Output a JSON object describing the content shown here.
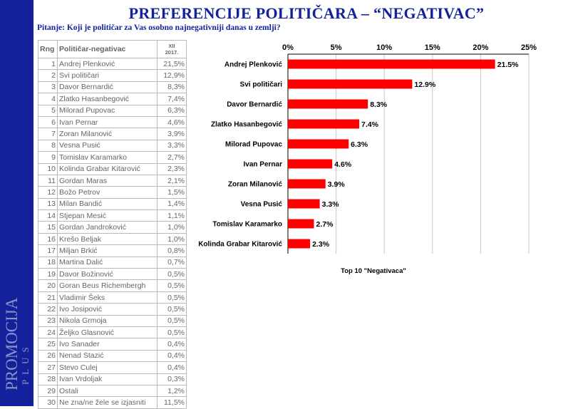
{
  "title": "PREFERENCIJE POLITIČARA – “NEGATIVAC”",
  "question": "Pitanje: Koji je političar za Vas osobno najnegativniji danas u zemlji?",
  "brand": {
    "line1": "PROMOCIJA",
    "line2": "PLUS"
  },
  "colors": {
    "sidebar": "#13229a",
    "bar": "#ff0000",
    "title": "#13229a"
  },
  "table": {
    "headers": {
      "rank": "Rng",
      "name": "Političar-negativac",
      "period_line1": "XII",
      "period_line2": "2017."
    },
    "rows": [
      {
        "rank": "1",
        "name": "Andrej Plenković",
        "value": "21,5%"
      },
      {
        "rank": "2",
        "name": "Svi političari",
        "value": "12,9%"
      },
      {
        "rank": "3",
        "name": "Davor Bernardić",
        "value": "8,3%"
      },
      {
        "rank": "4",
        "name": "Zlatko Hasanbegović",
        "value": "7,4%"
      },
      {
        "rank": "5",
        "name": "Milorad Pupovac",
        "value": "6,3%"
      },
      {
        "rank": "6",
        "name": "Ivan Pernar",
        "value": "4,6%"
      },
      {
        "rank": "7",
        "name": "Zoran Milanović",
        "value": "3,9%"
      },
      {
        "rank": "8",
        "name": "Vesna Pusić",
        "value": "3,3%"
      },
      {
        "rank": "9",
        "name": "Tomislav Karamarko",
        "value": "2,7%"
      },
      {
        "rank": "10",
        "name": "Kolinda Grabar Kitarović",
        "value": "2,3%"
      },
      {
        "rank": "11",
        "name": "Gordan Maras",
        "value": "2,1%"
      },
      {
        "rank": "12",
        "name": "Božo Petrov",
        "value": "1,5%"
      },
      {
        "rank": "13",
        "name": "Milan Bandić",
        "value": "1,4%"
      },
      {
        "rank": "14",
        "name": "Stjepan Mesić",
        "value": "1,1%"
      },
      {
        "rank": "15",
        "name": "Gordan Jandroković",
        "value": "1,0%"
      },
      {
        "rank": "16",
        "name": "Krešo Beljak",
        "value": "1,0%"
      },
      {
        "rank": "17",
        "name": "Miljan Brkić",
        "value": "0,8%"
      },
      {
        "rank": "18",
        "name": "Martina Dalić",
        "value": "0,7%"
      },
      {
        "rank": "19",
        "name": "Davor Božinović",
        "value": "0,5%"
      },
      {
        "rank": "20",
        "name": "Goran Beus Richembergh",
        "value": "0,5%"
      },
      {
        "rank": "21",
        "name": "Vladimir Šeks",
        "value": "0,5%"
      },
      {
        "rank": "22",
        "name": "Ivo Josipović",
        "value": "0,5%"
      },
      {
        "rank": "23",
        "name": "Nikola Grmoja",
        "value": "0,5%"
      },
      {
        "rank": "24",
        "name": "Željko Glasnović",
        "value": "0,5%"
      },
      {
        "rank": "25",
        "name": "Ivo Sanader",
        "value": "0,4%"
      },
      {
        "rank": "26",
        "name": "Nenad Stazić",
        "value": "0,4%"
      },
      {
        "rank": "27",
        "name": "Stevo Culej",
        "value": "0,4%"
      },
      {
        "rank": "28",
        "name": "Ivan Vrdoljak",
        "value": "0,3%"
      },
      {
        "rank": "29",
        "name": "Ostali",
        "value": "1,2%"
      },
      {
        "rank": "30",
        "name": "Ne zna/ne žele se izjasniti",
        "value": "11,5%"
      }
    ]
  },
  "chart_data": {
    "type": "bar",
    "orientation": "horizontal",
    "title": "Top 10 \"Negativaca\"",
    "xlim": [
      0,
      25
    ],
    "xticks": [
      "0%",
      "5%",
      "10%",
      "15%",
      "20%",
      "25%"
    ],
    "xtick_values": [
      0,
      5,
      10,
      15,
      20,
      25
    ],
    "axis_position": "top",
    "grid": true,
    "categories": [
      "Andrej Plenković",
      "Svi političari",
      "Davor Bernardić",
      "Zlatko Hasanbegović",
      "Milorad Pupovac",
      "Ivan Pernar",
      "Zoran Milanović",
      "Vesna Pusić",
      "Tomislav Karamarko",
      "Kolinda Grabar Kitarović"
    ],
    "values": [
      21.5,
      12.9,
      8.3,
      7.4,
      6.3,
      4.6,
      3.9,
      3.3,
      2.7,
      2.3
    ],
    "labels": [
      "21.5%",
      "12.9%",
      "8.3%",
      "7.4%",
      "6.3%",
      "4.6%",
      "3.9%",
      "3.3%",
      "2.7%",
      "2.3%"
    ]
  }
}
